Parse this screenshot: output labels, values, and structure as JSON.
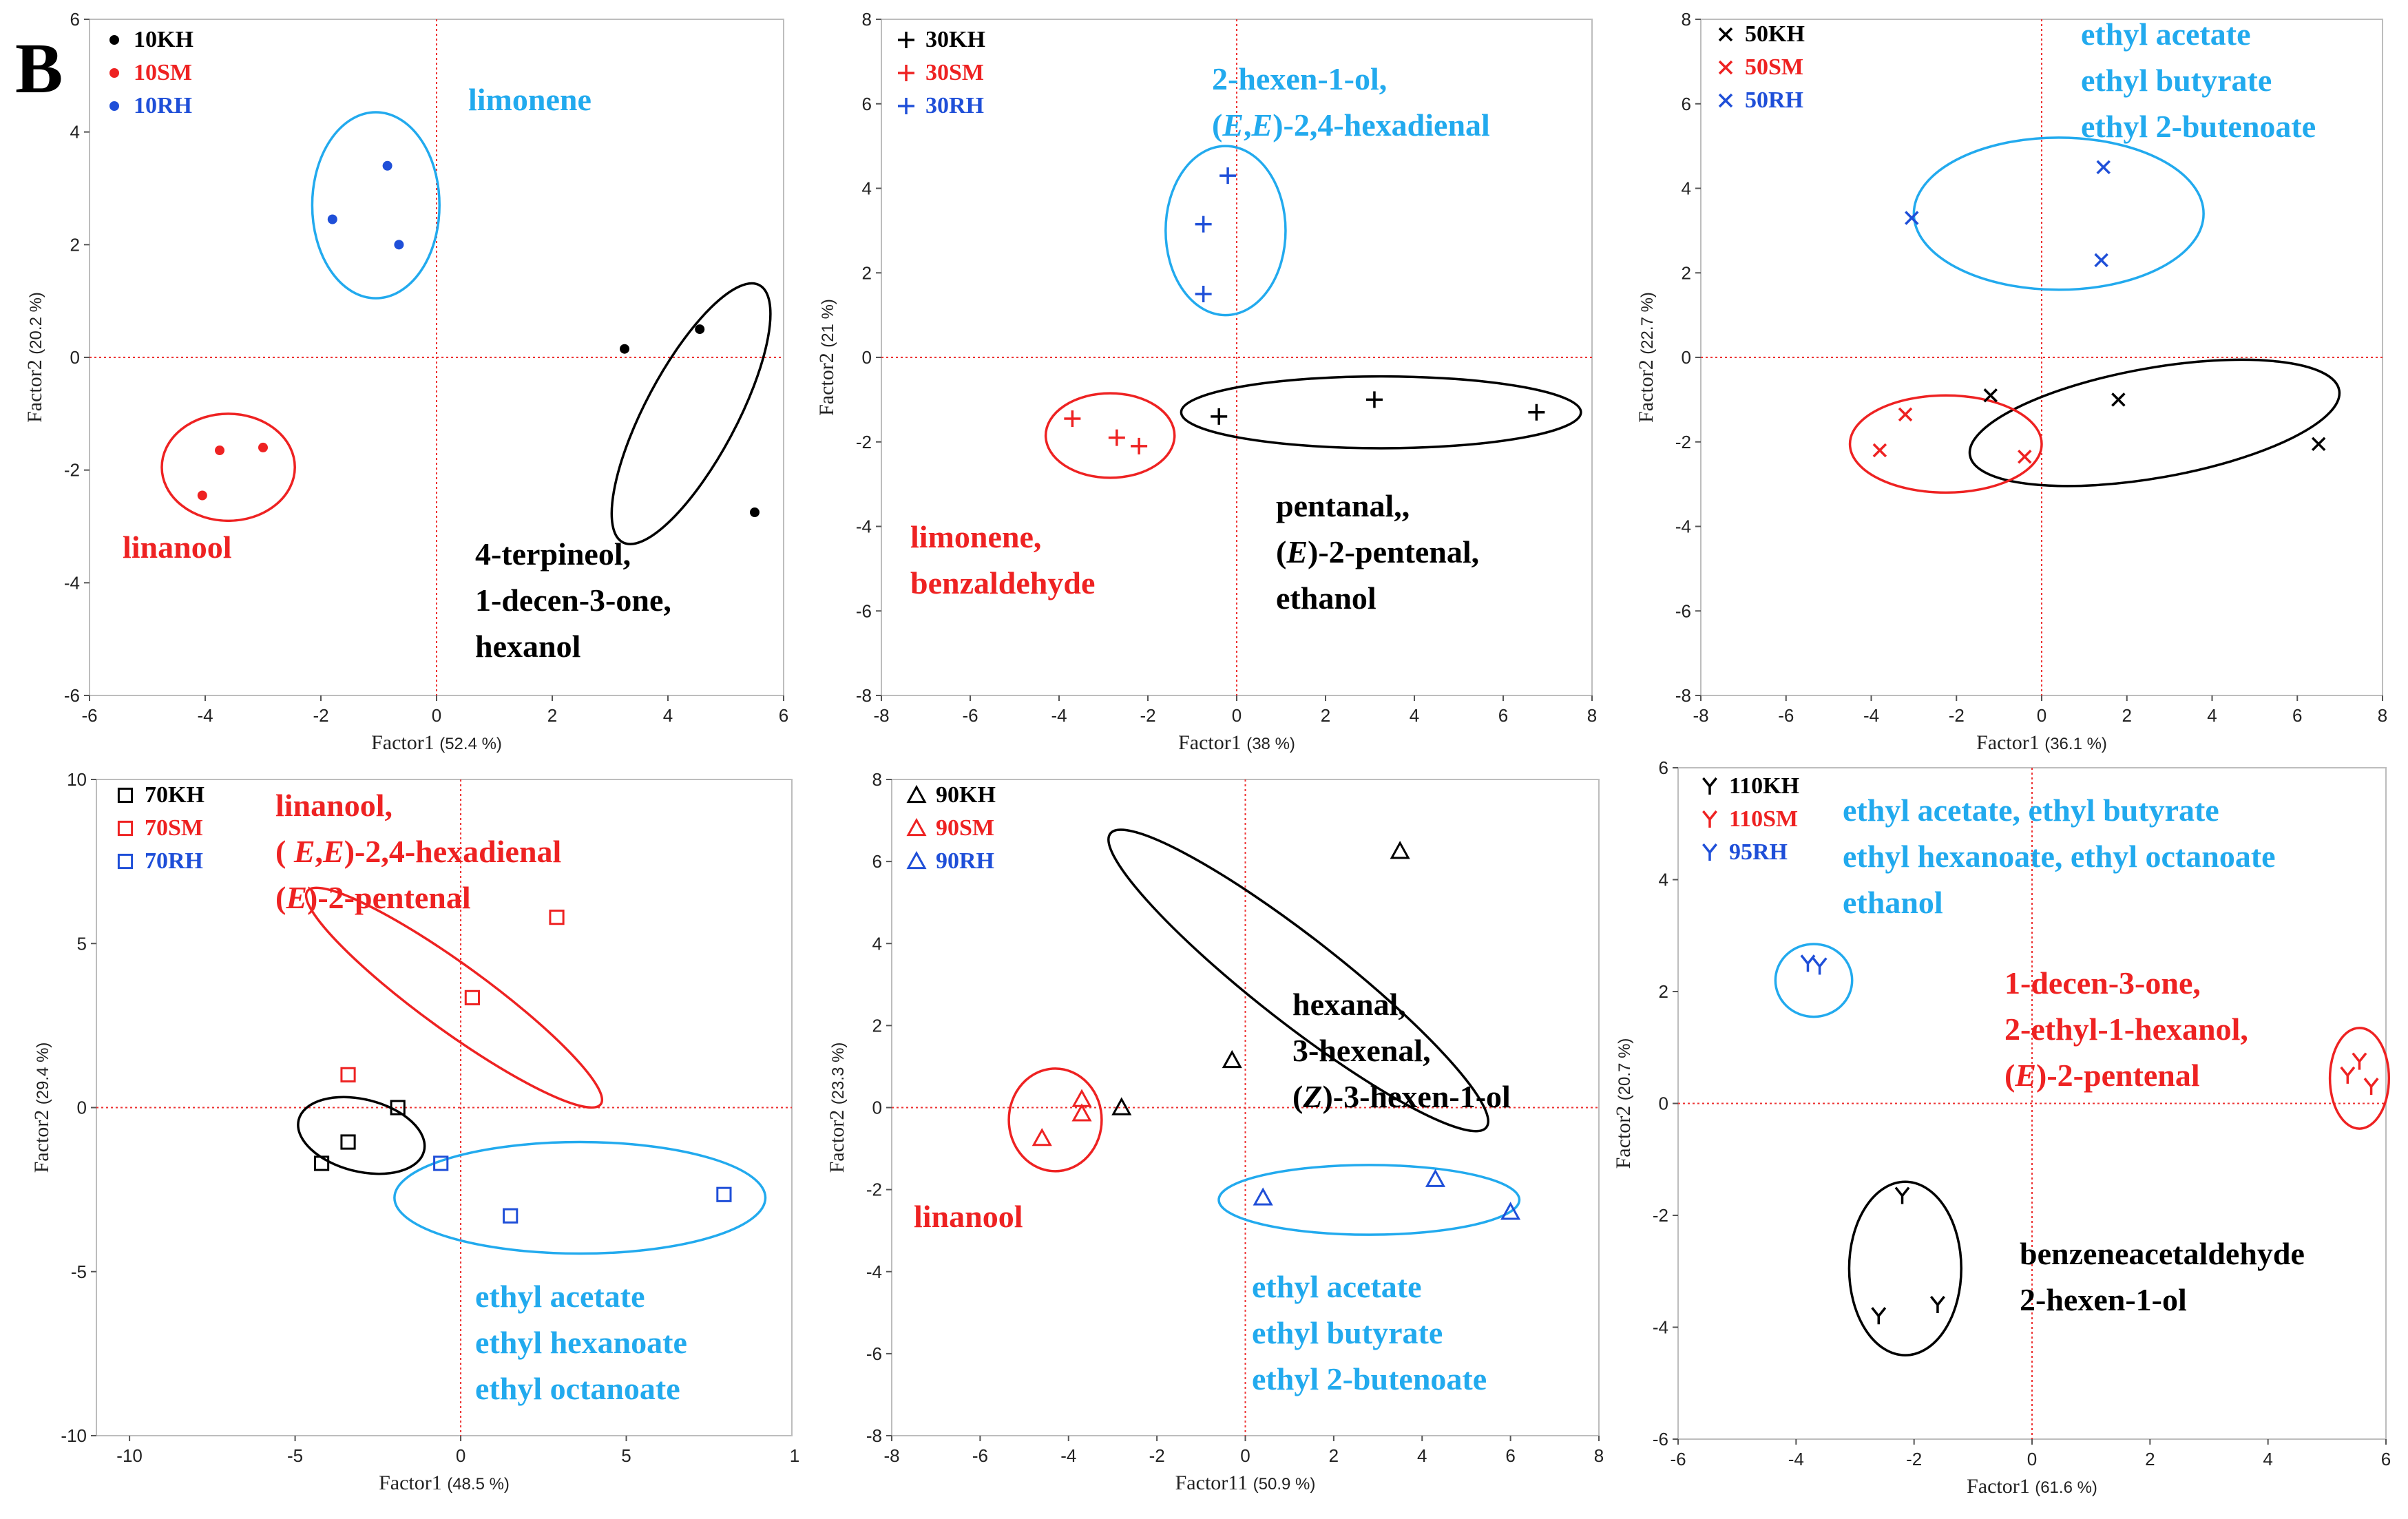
{
  "figure": {
    "panel_label": "B"
  },
  "chart_data": [
    {
      "type": "scatter",
      "id": "p10",
      "marker": "dot",
      "xlabel": "Factor1",
      "xlabel_pct": "(52.4 %)",
      "ylabel": "Factor2",
      "ylabel_pct": "(20.2 %)",
      "xlim": [
        -6,
        6
      ],
      "ylim": [
        -6,
        6
      ],
      "xticks": [
        -6,
        -4,
        -2,
        0,
        2,
        4,
        6
      ],
      "yticks": [
        -6,
        -4,
        -2,
        0,
        2,
        4,
        6
      ],
      "series": [
        {
          "name": "10KH",
          "color": "#000000",
          "points": [
            [
              3.25,
              0.15
            ],
            [
              4.55,
              0.5
            ],
            [
              5.5,
              -2.75
            ]
          ]
        },
        {
          "name": "10SM",
          "color": "#ee2222",
          "points": [
            [
              -3.75,
              -1.65
            ],
            [
              -3.0,
              -1.6
            ],
            [
              -4.05,
              -2.45
            ]
          ]
        },
        {
          "name": "10RH",
          "color": "#1f4fd8",
          "points": [
            [
              -0.85,
              3.4
            ],
            [
              -1.8,
              2.45
            ],
            [
              -0.65,
              2.0
            ]
          ]
        }
      ],
      "ellipses": [
        {
          "color": "#000000",
          "cx": 4.4,
          "cy": -1.0,
          "rx": 2.55,
          "ry": 0.8,
          "angle": -62
        },
        {
          "color": "#ee2222",
          "cx": -3.6,
          "cy": -1.95,
          "rx": 1.15,
          "ry": 0.95,
          "angle": 0
        },
        {
          "color": "#22aaee",
          "cx": -1.05,
          "cy": 2.7,
          "rx": 1.1,
          "ry": 1.65,
          "angle": 0
        }
      ],
      "annotations": [
        {
          "color": "#22aaee",
          "lines": [
            "limonene"
          ]
        },
        {
          "color": "#ee2222",
          "lines": [
            "linanool"
          ]
        },
        {
          "color": "#000000",
          "lines": [
            "4-terpineol,",
            "1-decen-3-one,",
            "hexanol"
          ]
        }
      ]
    },
    {
      "type": "scatter",
      "id": "p30",
      "marker": "plus",
      "xlabel": "Factor1",
      "xlabel_pct": "(38 %)",
      "ylabel": "Factor2",
      "ylabel_pct": "(21 %)",
      "xlim": [
        -8,
        8
      ],
      "ylim": [
        -8,
        8
      ],
      "xticks": [
        -8,
        -6,
        -4,
        -2,
        0,
        2,
        4,
        6,
        8
      ],
      "yticks": [
        -8,
        -6,
        -4,
        -2,
        0,
        2,
        4,
        6,
        8
      ],
      "series": [
        {
          "name": "30KH",
          "color": "#000000",
          "points": [
            [
              -0.4,
              -1.4
            ],
            [
              3.1,
              -1.0
            ],
            [
              6.75,
              -1.3
            ]
          ]
        },
        {
          "name": "30SM",
          "color": "#ee2222",
          "points": [
            [
              -3.7,
              -1.45
            ],
            [
              -2.7,
              -1.9
            ],
            [
              -2.2,
              -2.1
            ]
          ]
        },
        {
          "name": "30RH",
          "color": "#1f4fd8",
          "points": [
            [
              -0.2,
              4.3
            ],
            [
              -0.75,
              3.15
            ],
            [
              -0.75,
              1.5
            ]
          ]
        }
      ],
      "ellipses": [
        {
          "color": "#000000",
          "cx": 3.25,
          "cy": -1.3,
          "rx": 4.5,
          "ry": 0.85,
          "angle": 0
        },
        {
          "color": "#ee2222",
          "cx": -2.85,
          "cy": -1.85,
          "rx": 1.45,
          "ry": 1.0,
          "angle": 0
        },
        {
          "color": "#22aaee",
          "cx": -0.25,
          "cy": 3.0,
          "rx": 1.35,
          "ry": 2.0,
          "angle": 0
        }
      ],
      "annotations": [
        {
          "color": "#22aaee",
          "lines": [
            "2-hexen-1-ol,",
            "(E,E)-2,4-hexadienal"
          ]
        },
        {
          "color": "#ee2222",
          "lines": [
            "limonene,",
            "benzaldehyde"
          ]
        },
        {
          "color": "#000000",
          "lines": [
            "pentanal,,",
            "(E)-2-pentenal,",
            "ethanol"
          ]
        }
      ]
    },
    {
      "type": "scatter",
      "id": "p50",
      "marker": "cross",
      "xlabel": "Factor1",
      "xlabel_pct": "(36.1 %)",
      "ylabel": "Factor2",
      "ylabel_pct": "(22.7 %)",
      "xlim": [
        -8,
        8
      ],
      "ylim": [
        -8,
        8
      ],
      "xticks": [
        -8,
        -6,
        -4,
        -2,
        0,
        2,
        4,
        6,
        8
      ],
      "yticks": [
        -8,
        -6,
        -4,
        -2,
        0,
        2,
        4,
        6,
        8
      ],
      "series": [
        {
          "name": "50KH",
          "color": "#000000",
          "points": [
            [
              -1.2,
              -0.9
            ],
            [
              1.8,
              -1.0
            ],
            [
              6.5,
              -2.05
            ]
          ]
        },
        {
          "name": "50SM",
          "color": "#ee2222",
          "points": [
            [
              -3.2,
              -1.35
            ],
            [
              -3.8,
              -2.2
            ],
            [
              -0.4,
              -2.35
            ]
          ]
        },
        {
          "name": "50RH",
          "color": "#1f4fd8",
          "points": [
            [
              1.45,
              4.5
            ],
            [
              -3.05,
              3.3
            ],
            [
              1.4,
              2.3
            ]
          ]
        }
      ],
      "ellipses": [
        {
          "color": "#000000",
          "cx": 2.65,
          "cy": -1.55,
          "rx": 4.4,
          "ry": 1.3,
          "angle": -10
        },
        {
          "color": "#ee2222",
          "cx": -2.25,
          "cy": -2.05,
          "rx": 2.25,
          "ry": 1.15,
          "angle": 0
        },
        {
          "color": "#22aaee",
          "cx": 0.4,
          "cy": 3.4,
          "rx": 3.4,
          "ry": 1.8,
          "angle": 0
        }
      ],
      "annotations": [
        {
          "color": "#22aaee",
          "lines": [
            "ethyl acetate",
            "ethyl butyrate",
            "ethyl 2-butenoate"
          ]
        }
      ]
    },
    {
      "type": "scatter",
      "id": "p70",
      "marker": "square",
      "xlabel": "Factor1",
      "xlabel_pct": "(48.5 %)",
      "ylabel": "Factor2",
      "ylabel_pct": "(29.4 %)",
      "xlim": [
        -11,
        10
      ],
      "ylim": [
        -10,
        10
      ],
      "xticks": [
        -10,
        -5,
        0,
        5
      ],
      "xtick_extra": "1",
      "yticks": [
        -10,
        -5,
        0,
        5,
        10
      ],
      "series": [
        {
          "name": "70KH",
          "color": "#000000",
          "points": [
            [
              -1.9,
              0.0
            ],
            [
              -3.4,
              -1.05
            ],
            [
              -4.2,
              -1.7
            ]
          ]
        },
        {
          "name": "70SM",
          "color": "#ee2222",
          "points": [
            [
              2.9,
              5.8
            ],
            [
              0.35,
              3.35
            ],
            [
              -3.4,
              1.0
            ]
          ]
        },
        {
          "name": "70RH",
          "color": "#1f4fd8",
          "points": [
            [
              -0.6,
              -1.7
            ],
            [
              1.5,
              -3.3
            ],
            [
              7.95,
              -2.65
            ]
          ]
        }
      ],
      "ellipses": [
        {
          "color": "#000000",
          "cx": -3.0,
          "cy": -0.85,
          "rx": 1.95,
          "ry": 1.1,
          "angle": 14
        },
        {
          "color": "#ee2222",
          "cx": -0.2,
          "cy": 3.35,
          "rx": 5.5,
          "ry": 1.0,
          "angle": 36
        },
        {
          "color": "#22aaee",
          "cx": 3.6,
          "cy": -2.75,
          "rx": 5.6,
          "ry": 1.7,
          "angle": 0
        }
      ],
      "annotations": [
        {
          "color": "#ee2222",
          "lines": [
            "linanool,",
            "( E,E)-2,4-hexadienal",
            "(E)-2-pentenal"
          ]
        },
        {
          "color": "#22aaee",
          "lines": [
            "ethyl acetate",
            "ethyl hexanoate",
            "ethyl octanoate"
          ]
        }
      ]
    },
    {
      "type": "scatter",
      "id": "p90",
      "marker": "triangle",
      "xlabel": "Factor1",
      "xlabel_pct": "(50.9 %)",
      "xlabel_prefix": "1",
      "ylabel": "Factor2",
      "ylabel_pct": "(23.3 %)",
      "xlim": [
        -8,
        8
      ],
      "ylim": [
        -8,
        8
      ],
      "xticks": [
        -8,
        -6,
        -4,
        -2,
        0,
        2,
        4,
        6,
        8
      ],
      "yticks": [
        -8,
        -6,
        -4,
        -2,
        0,
        2,
        4,
        6,
        8
      ],
      "series": [
        {
          "name": "90KH",
          "color": "#000000",
          "points": [
            [
              3.5,
              6.25
            ],
            [
              -0.3,
              1.15
            ],
            [
              -2.8,
              0.0
            ]
          ]
        },
        {
          "name": "90SM",
          "color": "#ee2222",
          "points": [
            [
              -4.6,
              -0.75
            ],
            [
              -3.7,
              -0.15
            ],
            [
              -3.7,
              0.2
            ]
          ]
        },
        {
          "name": "90RH",
          "color": "#1f4fd8",
          "points": [
            [
              0.4,
              -2.2
            ],
            [
              4.3,
              -1.75
            ],
            [
              6.0,
              -2.55
            ]
          ]
        }
      ],
      "ellipses": [
        {
          "color": "#000000",
          "cx": 1.2,
          "cy": 3.1,
          "rx": 5.6,
          "ry": 1.0,
          "angle": 38
        },
        {
          "color": "#ee2222",
          "cx": -4.3,
          "cy": -0.3,
          "rx": 1.05,
          "ry": 1.25,
          "angle": 0
        },
        {
          "color": "#22aaee",
          "cx": 2.8,
          "cy": -2.25,
          "rx": 3.4,
          "ry": 0.85,
          "angle": 0
        }
      ],
      "annotations": [
        {
          "color": "#000000",
          "lines": [
            "hexanal,",
            "3-hexenal,",
            "(Z)-3-hexen-1-ol"
          ]
        },
        {
          "color": "#ee2222",
          "lines": [
            "linanool"
          ]
        },
        {
          "color": "#22aaee",
          "lines": [
            "ethyl acetate",
            "ethyl butyrate",
            "ethyl 2-butenoate"
          ]
        }
      ]
    },
    {
      "type": "scatter",
      "id": "p110",
      "marker": "y",
      "xlabel": "Factor1",
      "xlabel_pct": "(61.6 %)",
      "ylabel": "Factor2",
      "ylabel_pct": "(20.7 %)",
      "xlim": [
        -6,
        6
      ],
      "ylim": [
        -6,
        6
      ],
      "xticks": [
        -6,
        -4,
        -2,
        0,
        2,
        4,
        6
      ],
      "yticks": [
        -6,
        -4,
        -2,
        0,
        2,
        4,
        6
      ],
      "series": [
        {
          "name": "110KH",
          "color": "#000000",
          "points": [
            [
              -2.2,
              -1.65
            ],
            [
              -2.6,
              -3.8
            ],
            [
              -1.6,
              -3.6
            ]
          ]
        },
        {
          "name": "110SM",
          "color": "#ee2222",
          "points": [
            [
              5.35,
              0.5
            ],
            [
              5.55,
              0.75
            ],
            [
              5.75,
              0.3
            ]
          ]
        },
        {
          "name": "95RH",
          "color": "#1f4fd8",
          "points": [
            [
              -3.8,
              2.5
            ],
            [
              -3.6,
              2.45
            ]
          ]
        }
      ],
      "ellipses": [
        {
          "color": "#000000",
          "cx": -2.15,
          "cy": -2.95,
          "rx": 0.95,
          "ry": 1.55,
          "angle": 0
        },
        {
          "color": "#ee2222",
          "cx": 5.55,
          "cy": 0.45,
          "rx": 0.5,
          "ry": 0.9,
          "angle": 0
        },
        {
          "color": "#22aaee",
          "cx": -3.7,
          "cy": 2.2,
          "rx": 0.65,
          "ry": 0.65,
          "angle": 0
        }
      ],
      "annotations": [
        {
          "color": "#22aaee",
          "lines": [
            "ethyl acetate, ethyl butyrate",
            "ethyl hexanoate, ethyl octanoate",
            "ethanol"
          ]
        },
        {
          "color": "#ee2222",
          "lines": [
            "1-decen-3-one,",
            "2-ethyl-1-hexanol,",
            "(E)-2-pentenal"
          ]
        },
        {
          "color": "#000000",
          "lines": [
            "benzeneacetaldehyde",
            "2-hexen-1-ol"
          ]
        }
      ]
    }
  ]
}
